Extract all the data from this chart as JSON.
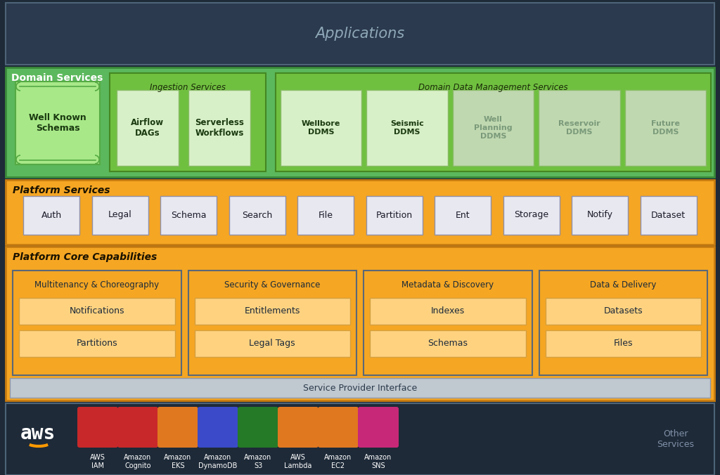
{
  "fig_bg": "#1e2a38",
  "app_bg": "#2b3a4e",
  "app_border": "#4d6478",
  "app_text": "#8fa8b8",
  "app_text_size": 15,
  "domain_bg": "#5cb85c",
  "domain_border": "#3a8a3a",
  "domain_label": "Domain Services",
  "domain_label_color": "#ffffff",
  "scroll_bg": "#a8e888",
  "scroll_border": "#55aa44",
  "scroll_text": "Well Known\nSchemas",
  "scroll_text_color": "#1a3a10",
  "ing_bg": "#70c040",
  "ing_border": "#448822",
  "ing_label": "Ingestion Services",
  "ing_items": [
    "Airflow\nDAGs",
    "Serverless\nWorkflows"
  ],
  "ing_item_bg": "#d8f0c8",
  "ing_item_border": "#88bb66",
  "ing_item_text": "#1a3a10",
  "ddms_bg": "#70c040",
  "ddms_border": "#448822",
  "ddms_label": "Domain Data Management Services",
  "ddms_items": [
    "Wellbore\nDDMS",
    "Seismic\nDDMS",
    "Well\nPlanning\nDDMS",
    "Reservoir\nDDMS",
    "Future\nDDMS"
  ],
  "ddms_active": [
    true,
    true,
    false,
    false,
    false
  ],
  "ddms_item_active_bg": "#d8f0c8",
  "ddms_item_inactive_bg": "#c0d8b0",
  "ddms_item_active_text": "#1a3a10",
  "ddms_item_inactive_text": "#7a9a7a",
  "ddms_item_border": "#88bb66",
  "ps_bg": "#f5a623",
  "ps_border": "#c87d10",
  "ps_label": "Platform Services",
  "ps_label_color": "#1a1200",
  "ps_items": [
    "Auth",
    "Legal",
    "Schema",
    "Search",
    "File",
    "Partition",
    "Ent",
    "Storage",
    "Notify",
    "Dataset"
  ],
  "ps_item_bg": "#e8e8f0",
  "ps_item_border": "#9090a8",
  "ps_item_text": "#1a1a2a",
  "pcc_bg": "#f5a623",
  "pcc_border": "#c87d10",
  "pcc_label": "Platform Core Capabilities",
  "pcc_label_color": "#1a1200",
  "sec_bg": "#f5a623",
  "sec_border": "#5a6878",
  "sec_title_color": "#1a2a3a",
  "sec_item_bg": "#ffd280",
  "sec_item_border": "#d4a040",
  "sec_item_text": "#1a2a3a",
  "core_sections": [
    {
      "title": "Multitenancy & Choreography",
      "items": [
        "Partitions",
        "Notifications"
      ]
    },
    {
      "title": "Security & Governance",
      "items": [
        "Legal Tags",
        "Entitlements"
      ]
    },
    {
      "title": "Metadata & Discovery",
      "items": [
        "Schemas",
        "Indexes"
      ]
    },
    {
      "title": "Data & Delivery",
      "items": [
        "Files",
        "Datasets"
      ]
    }
  ],
  "spi_bg": "#c0c8d0",
  "spi_border": "#9098a8",
  "spi_text": "Service Provider Interface",
  "spi_text_color": "#2a3a4a",
  "aws_bg": "#1e2a38",
  "aws_border": "#4d6478",
  "aws_text_color": "#ffffff",
  "aws_smile_color": "#ff9900",
  "aws_services": [
    {
      "name": "AWS\nIAM",
      "color": "#c8282a"
    },
    {
      "name": "Amazon\nCognito",
      "color": "#c8282a"
    },
    {
      "name": "Amazon\nEKS",
      "color": "#e07820"
    },
    {
      "name": "Amazon\nDynamoDB",
      "color": "#3a4ac8"
    },
    {
      "name": "Amazon\nS3",
      "color": "#257a28"
    },
    {
      "name": "AWS\nLambda",
      "color": "#e07820"
    },
    {
      "name": "Amazon\nEC2",
      "color": "#e07820"
    },
    {
      "name": "Amazon\nSNS",
      "color": "#c82878"
    }
  ],
  "other_services_text": "Other\nServices",
  "other_services_color": "#8090a8"
}
